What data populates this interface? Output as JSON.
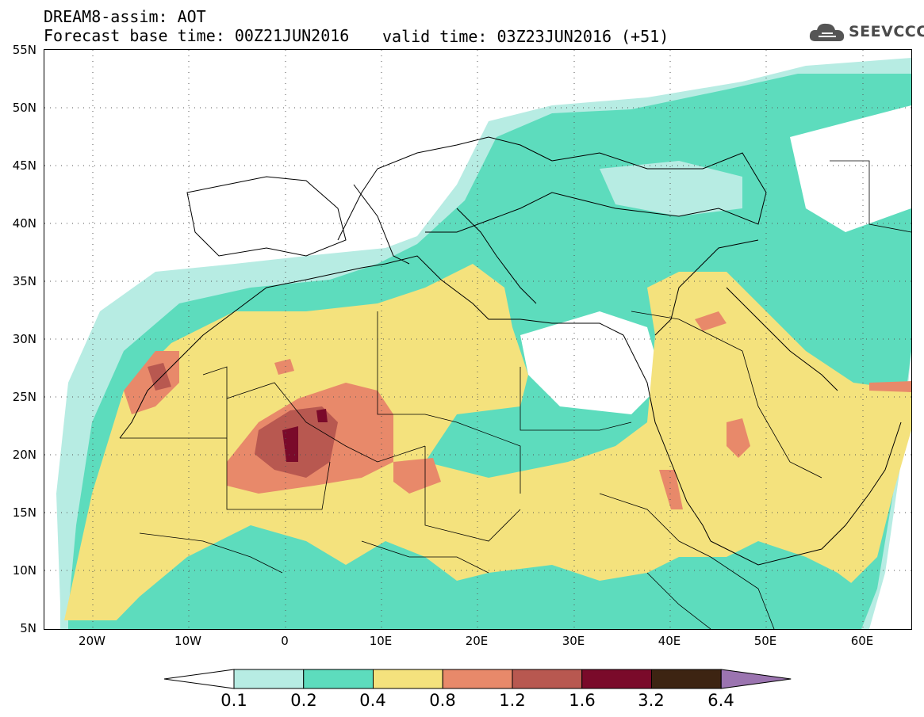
{
  "header": {
    "title": "DREAM8-assim: AOT",
    "base_time": "Forecast base time: 00Z21JUN2016",
    "valid_time": "valid time: 03Z23JUN2016 (+51)"
  },
  "logo": {
    "text": "SEEVCCC",
    "icon": "cloud-icon"
  },
  "map": {
    "variable": "AOT",
    "lat_labels": [
      "55N",
      "50N",
      "45N",
      "40N",
      "35N",
      "30N",
      "25N",
      "20N",
      "15N",
      "10N",
      "5N"
    ],
    "lon_labels": [
      "20W",
      "10W",
      "0",
      "10E",
      "20E",
      "30E",
      "40E",
      "50E",
      "60E"
    ],
    "lat_range": [
      5,
      55
    ],
    "lon_range": [
      -25,
      65
    ],
    "grid": "dotted"
  },
  "colorbar": {
    "levels": [
      "0.1",
      "0.2",
      "0.4",
      "0.8",
      "1.2",
      "1.6",
      "3.2",
      "6.4"
    ],
    "colors": [
      "#ffffff",
      "#b7ece3",
      "#5ddcbd",
      "#f4e27d",
      "#e8896a",
      "#b85850",
      "#7a0a2a",
      "#3d2412",
      "#9b74b0"
    ],
    "extend": "both"
  },
  "palette": {
    "c1": "#b7ece3",
    "c2": "#5ddcbd",
    "c3": "#f4e27d",
    "c4": "#e8896a",
    "c5": "#b85850",
    "c6": "#7a0a2a"
  }
}
